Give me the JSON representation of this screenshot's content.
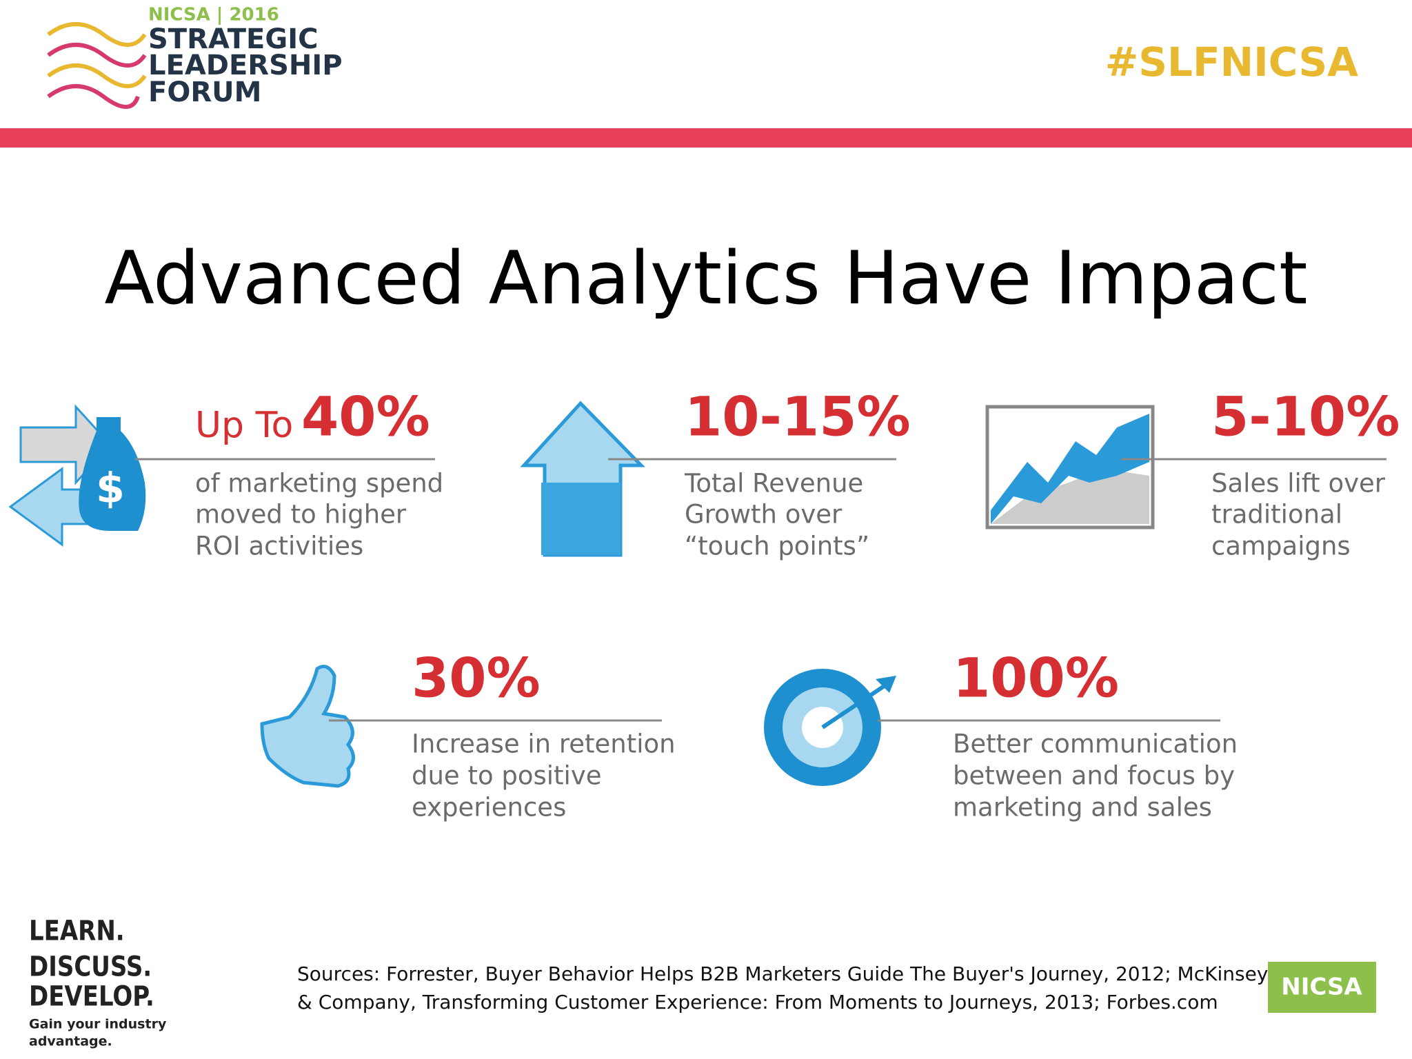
{
  "header": {
    "event": "NICSA | 2016",
    "logo_lines": [
      "STRATEGIC",
      "LEADERSHIP",
      "FORUM"
    ],
    "hashtag": "#SLFNICSA"
  },
  "title": "Advanced Analytics Have Impact",
  "stats": [
    {
      "prefix": "Up To",
      "figure": "40%",
      "description": [
        "of marketing spend",
        "moved to higher",
        "ROI activities"
      ]
    },
    {
      "figure": "10-15%",
      "description": [
        "Total Revenue",
        "Growth over",
        "“touch points”"
      ]
    },
    {
      "figure": "5-10%",
      "description": [
        "Sales lift over",
        "traditional",
        "campaigns"
      ]
    },
    {
      "figure": "30%",
      "description": [
        "Increase in retention",
        "due to positive",
        "experiences"
      ]
    },
    {
      "figure": "100%",
      "description": [
        "Better communication",
        "between and focus by",
        "marketing and sales"
      ]
    }
  ],
  "footer": {
    "tagline": [
      "LEARN.",
      "DISCUSS.",
      "DEVELOP."
    ],
    "subline": [
      "Gain your industry",
      "advantage."
    ],
    "sources": [
      "Sources: Forrester, Buyer Behavior Helps B2B Marketers Guide The Buyer's Journey, 2012; McKinsey",
      "& Company, Transforming Customer Experience: From Moments to Journeys, 2013; Forbes.com"
    ],
    "badge": "NICSA"
  }
}
